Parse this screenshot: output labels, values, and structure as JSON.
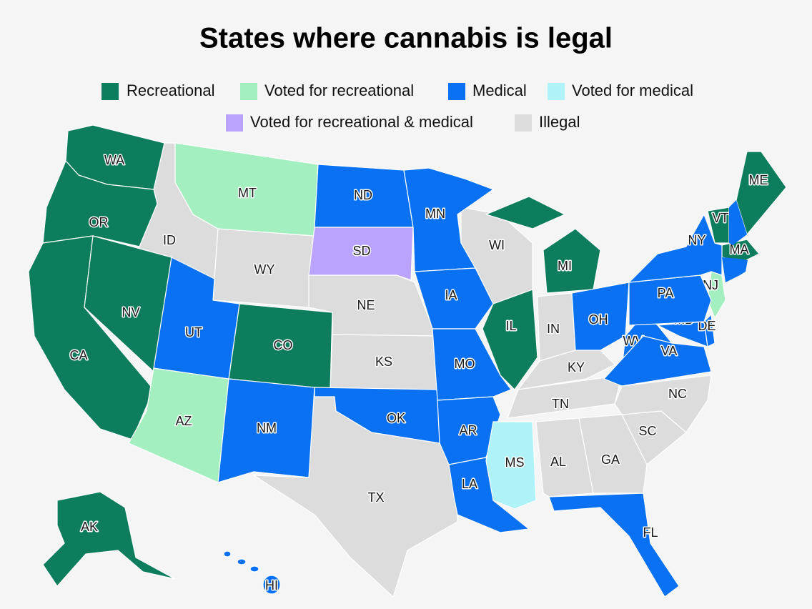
{
  "title": "States where cannabis is legal",
  "legend": [
    {
      "label": "Recreational",
      "color": "#0e7d5d",
      "states": [
        "WA",
        "OR",
        "CA",
        "NV",
        "CO",
        "IL",
        "MI",
        "VT",
        "ME",
        "MA",
        "AK"
      ]
    },
    {
      "label": "Voted for recreational",
      "color": "#a3efbf",
      "states": [
        "MT",
        "AZ",
        "NJ"
      ]
    },
    {
      "label": "Medical",
      "color": "#0a72f2",
      "states": [
        "ND",
        "MN",
        "UT",
        "NM",
        "OK",
        "IA",
        "MO",
        "AR",
        "LA",
        "FL",
        "OH",
        "WV",
        "VA",
        "MD",
        "DE",
        "PA",
        "NY",
        "HI"
      ]
    },
    {
      "label": "Voted for medical",
      "color": "#aff3f9",
      "states": [
        "MS"
      ]
    },
    {
      "label": "Voted for recreational & medical",
      "color": "#b9a3fc",
      "states": [
        "SD"
      ]
    },
    {
      "label": "Illegal",
      "color": "#dcdcdc",
      "states": [
        "ID",
        "WY",
        "NE",
        "KS",
        "TX",
        "WI",
        "IN",
        "KY",
        "TN",
        "AL",
        "GA",
        "SC",
        "NC"
      ]
    }
  ]
}
